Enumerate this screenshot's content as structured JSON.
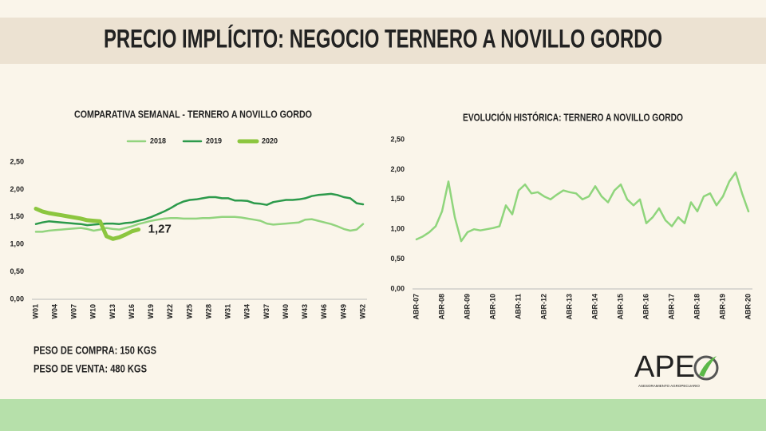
{
  "header": {
    "title": "PRECIO IMPLÍCITO: NEGOCIO TERNERO A NOVILLO GORDO"
  },
  "notes": [
    "PESO DE COMPRA: 150 KGS",
    "PESO DE VENTA: 480 KGS"
  ],
  "logo": {
    "text": "APE",
    "tagline": "ASESORAMIENTO AGROPECUARIO"
  },
  "chart_data": [
    {
      "type": "line",
      "title": "COMPARATIVA SEMANAL - TERNERO A NOVILLO GORDO",
      "categories": [
        "W01",
        null,
        null,
        "W04",
        null,
        null,
        "W07",
        null,
        null,
        "W10",
        null,
        null,
        "W13",
        null,
        null,
        "W16",
        null,
        null,
        "W19",
        null,
        null,
        "W22",
        null,
        null,
        "W25",
        null,
        null,
        "W28",
        null,
        null,
        "W31",
        null,
        null,
        "W34",
        null,
        null,
        "W37",
        null,
        null,
        "W40",
        null,
        null,
        "W43",
        null,
        null,
        "W46",
        null,
        null,
        "W49",
        null,
        null,
        "W52"
      ],
      "series": [
        {
          "name": "2018",
          "color": "#92d47e",
          "values": [
            1.23,
            1.23,
            1.25,
            1.26,
            1.27,
            1.28,
            1.29,
            1.3,
            1.28,
            1.25,
            1.27,
            1.3,
            1.28,
            1.27,
            1.3,
            1.33,
            1.37,
            1.4,
            1.43,
            1.45,
            1.47,
            1.48,
            1.48,
            1.47,
            1.47,
            1.47,
            1.48,
            1.48,
            1.49,
            1.5,
            1.5,
            1.5,
            1.49,
            1.47,
            1.45,
            1.43,
            1.38,
            1.36,
            1.37,
            1.38,
            1.39,
            1.4,
            1.45,
            1.46,
            1.43,
            1.4,
            1.37,
            1.33,
            1.28,
            1.25,
            1.27,
            1.37
          ]
        },
        {
          "name": "2019",
          "color": "#2c9a4b",
          "values": [
            1.37,
            1.4,
            1.42,
            1.41,
            1.4,
            1.39,
            1.38,
            1.37,
            1.35,
            1.36,
            1.37,
            1.38,
            1.38,
            1.37,
            1.39,
            1.4,
            1.43,
            1.46,
            1.5,
            1.55,
            1.6,
            1.66,
            1.73,
            1.78,
            1.81,
            1.82,
            1.84,
            1.86,
            1.86,
            1.84,
            1.84,
            1.8,
            1.8,
            1.79,
            1.75,
            1.74,
            1.72,
            1.77,
            1.79,
            1.81,
            1.81,
            1.82,
            1.84,
            1.88,
            1.9,
            1.91,
            1.92,
            1.9,
            1.86,
            1.84,
            1.75,
            1.73
          ]
        },
        {
          "name": "2020",
          "color": "#8cc63f",
          "width": 5,
          "values": [
            1.65,
            1.6,
            1.57,
            1.55,
            1.53,
            1.51,
            1.49,
            1.47,
            1.44,
            1.43,
            1.42,
            1.15,
            1.1,
            1.13,
            1.18,
            1.24,
            1.27,
            null,
            null,
            null,
            null,
            null,
            null,
            null,
            null,
            null,
            null,
            null,
            null,
            null,
            null,
            null,
            null,
            null,
            null,
            null,
            null,
            null,
            null,
            null,
            null,
            null,
            null,
            null,
            null,
            null,
            null,
            null,
            null,
            null,
            null,
            null
          ],
          "value_labels": [
            null,
            null,
            null,
            null,
            null,
            null,
            null,
            null,
            null,
            null,
            null,
            null,
            null,
            null,
            null,
            null,
            "1,27",
            null,
            null,
            null,
            null,
            null,
            null,
            null,
            null,
            null,
            null,
            null,
            null,
            null,
            null,
            null,
            null,
            null,
            null,
            null,
            null,
            null,
            null,
            null,
            null,
            null,
            null,
            null,
            null,
            null,
            null,
            null,
            null,
            null,
            null,
            null
          ]
        }
      ],
      "ylim": [
        0,
        2.5
      ],
      "yticks": [
        {
          "value": 0,
          "label": "0,00"
        },
        {
          "value": 0.5,
          "label": "0,50"
        },
        {
          "value": 1,
          "label": "1,00"
        },
        {
          "value": 1.5,
          "label": "1,50"
        },
        {
          "value": 2,
          "label": "2,00"
        },
        {
          "value": 2.5,
          "label": "2,50"
        }
      ],
      "grid": false,
      "legend": "top"
    },
    {
      "type": "line",
      "title": "EVOLUCIÓN HISTÓRICA: TERNERO A NOVILLO GORDO",
      "categories": [
        "ABR-07",
        null,
        null,
        null,
        "ABR-08",
        null,
        null,
        null,
        "ABR-09",
        null,
        null,
        null,
        "ABR-10",
        null,
        null,
        null,
        "ABR-11",
        null,
        null,
        null,
        "ABR-12",
        null,
        null,
        null,
        "ABR-13",
        null,
        null,
        null,
        "ABR-14",
        null,
        null,
        null,
        "ABR-15",
        null,
        null,
        null,
        "ABR-16",
        null,
        null,
        null,
        "ABR-17",
        null,
        null,
        null,
        "ABR-18",
        null,
        null,
        null,
        "ABR-19",
        null,
        null,
        null,
        "ABR-20"
      ],
      "series": [
        {
          "color": "#8fd57c",
          "values": [
            0.83,
            0.88,
            0.95,
            1.05,
            1.3,
            1.8,
            1.2,
            0.8,
            0.95,
            1.0,
            0.98,
            1.0,
            1.02,
            1.05,
            1.4,
            1.25,
            1.65,
            1.75,
            1.6,
            1.62,
            1.55,
            1.5,
            1.58,
            1.65,
            1.62,
            1.6,
            1.5,
            1.55,
            1.72,
            1.55,
            1.45,
            1.65,
            1.75,
            1.5,
            1.4,
            1.5,
            1.1,
            1.2,
            1.35,
            1.15,
            1.05,
            1.2,
            1.1,
            1.45,
            1.3,
            1.55,
            1.6,
            1.4,
            1.55,
            1.8,
            1.95,
            1.6,
            1.3
          ]
        }
      ],
      "ylim": [
        0,
        2.5
      ],
      "yticks": [
        {
          "value": 0,
          "label": "0,00"
        },
        {
          "value": 0.5,
          "label": "0,50"
        },
        {
          "value": 1,
          "label": "1,00"
        },
        {
          "value": 1.5,
          "label": "1,50"
        },
        {
          "value": 2,
          "label": "2,00"
        },
        {
          "value": 2.5,
          "label": "2,50"
        }
      ],
      "grid": false
    }
  ]
}
